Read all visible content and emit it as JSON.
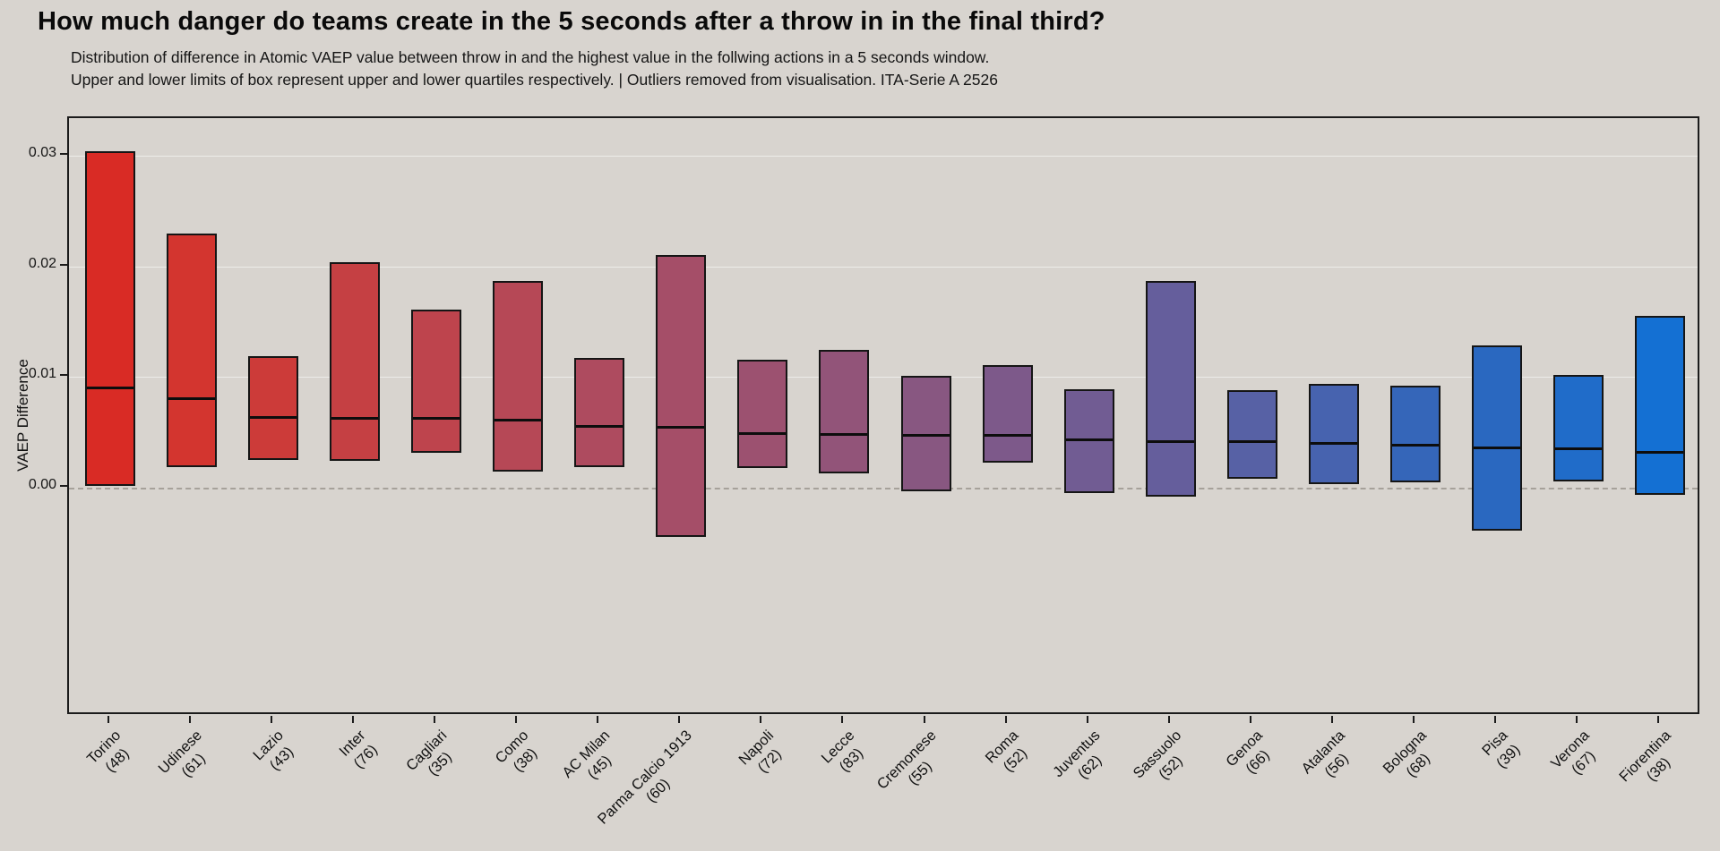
{
  "page": {
    "background": "#d8d4cf",
    "box_border_color": "#151515",
    "zero_line_color": "#a6a19a"
  },
  "chart_data": {
    "type": "boxplot",
    "title": "How much danger do teams create in the 5 seconds after a throw in in the final third?",
    "subtitle_lines": [
      "Distribution of difference in Atomic VAEP value between throw in and the highest value in the follwing actions in a 5 seconds window.",
      "Upper and lower limits of box represent upper and lower quartiles respectively. | Outliers removed from visualisation. ITA-Serie A 2526"
    ],
    "ylabel": "VAEP Difference",
    "ylim": [
      -0.0206,
      0.0334
    ],
    "yticks": [
      0.0,
      0.01,
      0.02,
      0.03
    ],
    "zero_line": 0,
    "grid": "subtle horizontal at y ticks",
    "legend": "none",
    "teams": [
      {
        "name": "Torino",
        "count": 48,
        "q1": 0.0002,
        "median": 0.009,
        "q3": 0.0304,
        "color": "#d92b25"
      },
      {
        "name": "Udinese",
        "count": 61,
        "q1": 0.0019,
        "median": 0.008,
        "q3": 0.023,
        "color": "#d3352f"
      },
      {
        "name": "Lazio",
        "count": 43,
        "q1": 0.0025,
        "median": 0.0063,
        "q3": 0.0119,
        "color": "#cc3b39"
      },
      {
        "name": "Inter",
        "count": 76,
        "q1": 0.0024,
        "median": 0.0062,
        "q3": 0.0204,
        "color": "#c54043"
      },
      {
        "name": "Cagliari",
        "count": 35,
        "q1": 0.0032,
        "median": 0.0062,
        "q3": 0.0161,
        "color": "#be444d"
      },
      {
        "name": "Como",
        "count": 38,
        "q1": 0.0015,
        "median": 0.0061,
        "q3": 0.0187,
        "color": "#b64856"
      },
      {
        "name": "AC Milan",
        "count": 45,
        "q1": 0.0019,
        "median": 0.0055,
        "q3": 0.0117,
        "color": "#ae4b5f"
      },
      {
        "name": "Parma Calcio 1913",
        "count": 60,
        "q1": -0.0044,
        "median": 0.0054,
        "q3": 0.021,
        "color": "#a54e68"
      },
      {
        "name": "Napoli",
        "count": 72,
        "q1": 0.0018,
        "median": 0.0049,
        "q3": 0.0116,
        "color": "#9c5170"
      },
      {
        "name": "Lecce",
        "count": 83,
        "q1": 0.0013,
        "median": 0.0048,
        "q3": 0.0125,
        "color": "#925479"
      },
      {
        "name": "Cremonese",
        "count": 55,
        "q1": -0.0003,
        "median": 0.0047,
        "q3": 0.0101,
        "color": "#885781"
      },
      {
        "name": "Roma",
        "count": 52,
        "q1": 0.0023,
        "median": 0.0047,
        "q3": 0.0111,
        "color": "#7d598a"
      },
      {
        "name": "Juventus",
        "count": 62,
        "q1": -0.0005,
        "median": 0.0043,
        "q3": 0.0089,
        "color": "#715c93"
      },
      {
        "name": "Sassuolo",
        "count": 52,
        "q1": -0.0008,
        "median": 0.0041,
        "q3": 0.0187,
        "color": "#655e9c"
      },
      {
        "name": "Genoa",
        "count": 66,
        "q1": 0.0008,
        "median": 0.0041,
        "q3": 0.0088,
        "color": "#5761a5"
      },
      {
        "name": "Atalanta",
        "count": 56,
        "q1": 0.0003,
        "median": 0.004,
        "q3": 0.0094,
        "color": "#4763af"
      },
      {
        "name": "Bologna",
        "count": 68,
        "q1": 0.0005,
        "median": 0.0038,
        "q3": 0.0092,
        "color": "#3566b9"
      },
      {
        "name": "Pisa",
        "count": 39,
        "q1": -0.0039,
        "median": 0.0036,
        "q3": 0.0129,
        "color": "#2a68c0"
      },
      {
        "name": "Verona",
        "count": 67,
        "q1": 0.0006,
        "median": 0.0035,
        "q3": 0.0102,
        "color": "#206cc9"
      },
      {
        "name": "Fiorentina",
        "count": 38,
        "q1": -0.0006,
        "median": 0.0032,
        "q3": 0.0155,
        "color": "#1470d3"
      }
    ]
  }
}
